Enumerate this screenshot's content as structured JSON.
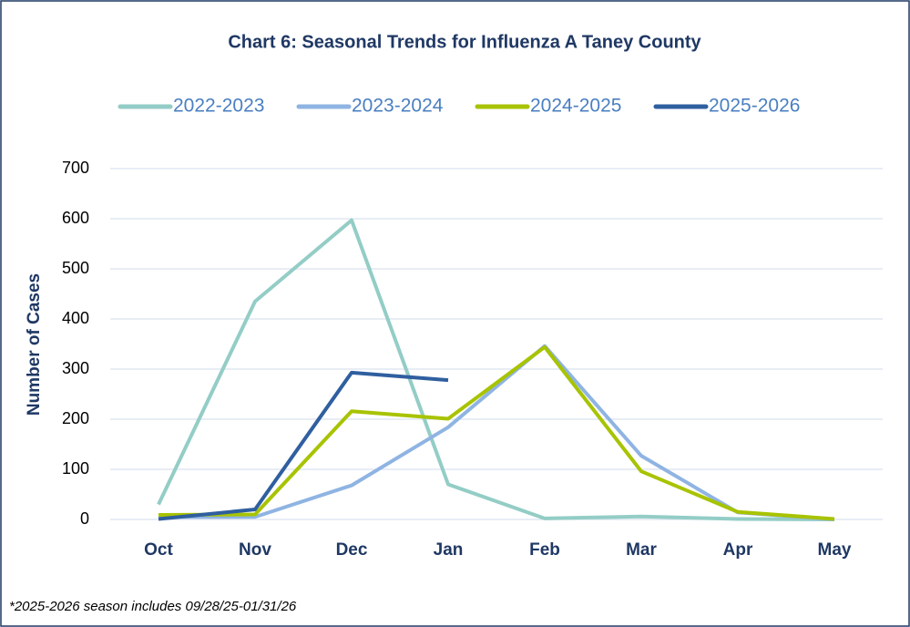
{
  "chart_data": {
    "type": "line",
    "title": "Chart 6: Seasonal Trends for Influenza A Taney County",
    "y_label": "Number of Cases",
    "footnote": "*2025-2026 season includes 09/28/25-01/31/26",
    "categories": [
      "Oct",
      "Nov",
      "Dec",
      "Jan",
      "Feb",
      "Mar",
      "Apr",
      "May"
    ],
    "series": [
      {
        "name": "2022-2023",
        "color": "#93cdc6",
        "values": [
          30,
          435,
          597,
          70,
          2,
          6,
          1,
          0
        ]
      },
      {
        "name": "2023-2024",
        "color": "#8fb4e3",
        "values": [
          5,
          5,
          68,
          184,
          346,
          127,
          14,
          0
        ]
      },
      {
        "name": "2024-2025",
        "color": "#a8c300",
        "values": [
          9,
          10,
          216,
          201,
          344,
          96,
          15,
          1
        ]
      },
      {
        "name": "2025-2026",
        "color": "#2f5f9f",
        "values": [
          1,
          20,
          293,
          278,
          null,
          null,
          null,
          null
        ]
      }
    ],
    "ylim": [
      0,
      700
    ],
    "yticks": [
      0,
      100,
      200,
      300,
      400,
      500,
      600,
      700
    ],
    "grid": true,
    "legend": "top"
  }
}
